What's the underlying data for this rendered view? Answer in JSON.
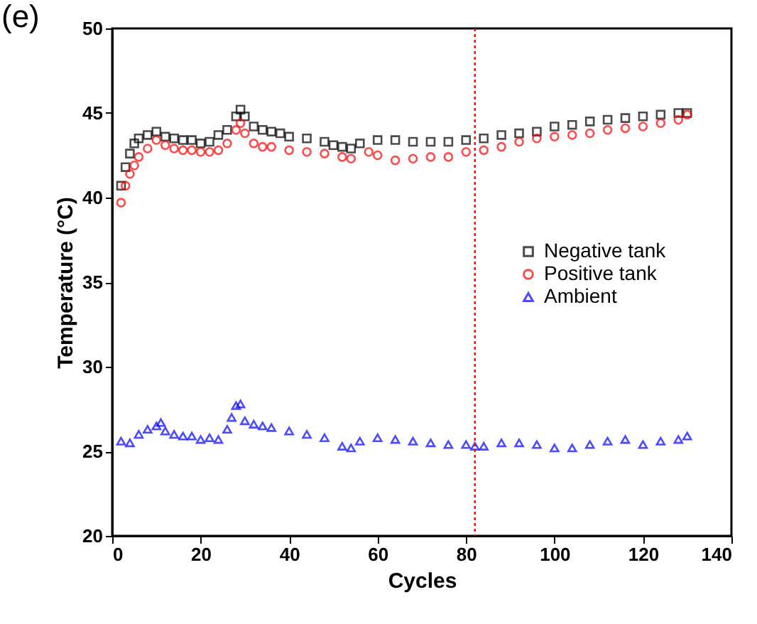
{
  "chart_data": {
    "type": "scatter",
    "xlabel": "Cycles",
    "ylabel": "Temperature (°C)",
    "xlim": [
      0,
      140
    ],
    "xticks": [
      0,
      20,
      40,
      60,
      80,
      100,
      120,
      140
    ],
    "ylim": [
      20,
      50
    ],
    "yticks": [
      20,
      25,
      30,
      35,
      40,
      45,
      50
    ],
    "grid": false,
    "legend": "right",
    "annotations": [
      "(e)"
    ],
    "ref_lines": [
      {
        "axis": "x",
        "value": 82,
        "color": "#ff0000",
        "line_style": "dotted"
      }
    ],
    "series": [
      {
        "name": "Negative tank",
        "color": "#000000",
        "marker": "square",
        "x": [
          2,
          3,
          4,
          5,
          6,
          8,
          10,
          12,
          14,
          16,
          18,
          20,
          22,
          24,
          26,
          28,
          29,
          30,
          32,
          34,
          36,
          38,
          40,
          44,
          48,
          50,
          52,
          54,
          56,
          60,
          64,
          68,
          72,
          76,
          80,
          84,
          88,
          92,
          96,
          100,
          104,
          108,
          112,
          116,
          120,
          124,
          128,
          130
        ],
        "values": [
          40.7,
          41.8,
          42.6,
          43.2,
          43.5,
          43.7,
          43.9,
          43.6,
          43.5,
          43.4,
          43.4,
          43.2,
          43.3,
          43.7,
          44.0,
          44.8,
          45.2,
          44.8,
          44.2,
          44.0,
          43.9,
          43.8,
          43.6,
          43.5,
          43.3,
          43.1,
          43.0,
          42.9,
          43.2,
          43.4,
          43.4,
          43.3,
          43.3,
          43.3,
          43.4,
          43.5,
          43.7,
          43.8,
          43.9,
          44.2,
          44.3,
          44.5,
          44.6,
          44.7,
          44.8,
          44.9,
          45.0,
          45.0
        ]
      },
      {
        "name": "Positive tank",
        "color": "#ff0000",
        "marker": "circle",
        "x": [
          2,
          3,
          4,
          5,
          6,
          8,
          10,
          12,
          14,
          16,
          18,
          20,
          22,
          24,
          26,
          28,
          29,
          30,
          32,
          34,
          36,
          40,
          44,
          48,
          52,
          54,
          58,
          60,
          64,
          68,
          72,
          76,
          80,
          84,
          88,
          92,
          96,
          100,
          104,
          108,
          112,
          116,
          120,
          124,
          128,
          130
        ],
        "values": [
          39.7,
          40.7,
          41.4,
          41.9,
          42.4,
          42.9,
          43.4,
          43.1,
          42.9,
          42.8,
          42.8,
          42.7,
          42.7,
          42.8,
          43.2,
          44.0,
          44.4,
          43.8,
          43.2,
          43.0,
          43.0,
          42.8,
          42.7,
          42.6,
          42.4,
          42.3,
          42.7,
          42.5,
          42.2,
          42.3,
          42.4,
          42.4,
          42.7,
          42.8,
          43.0,
          43.3,
          43.5,
          43.6,
          43.7,
          43.8,
          44.0,
          44.1,
          44.2,
          44.4,
          44.6,
          44.9
        ]
      },
      {
        "name": "Ambient",
        "color": "#0000ff",
        "marker": "triangle",
        "x": [
          2,
          4,
          6,
          8,
          10,
          11,
          12,
          14,
          16,
          18,
          20,
          22,
          24,
          26,
          27,
          28,
          29,
          30,
          32,
          34,
          36,
          40,
          44,
          48,
          52,
          54,
          56,
          60,
          64,
          68,
          72,
          76,
          80,
          82,
          84,
          88,
          92,
          96,
          100,
          104,
          108,
          112,
          116,
          120,
          124,
          128,
          130
        ],
        "values": [
          25.6,
          25.5,
          26.0,
          26.3,
          26.5,
          26.7,
          26.2,
          26.0,
          25.9,
          25.9,
          25.7,
          25.8,
          25.7,
          26.3,
          27.0,
          27.7,
          27.8,
          26.8,
          26.6,
          26.5,
          26.4,
          26.2,
          26.0,
          25.8,
          25.3,
          25.2,
          25.6,
          25.8,
          25.7,
          25.6,
          25.5,
          25.4,
          25.4,
          25.3,
          25.3,
          25.5,
          25.5,
          25.4,
          25.2,
          25.2,
          25.4,
          25.6,
          25.7,
          25.4,
          25.6,
          25.7,
          25.9
        ]
      }
    ]
  }
}
